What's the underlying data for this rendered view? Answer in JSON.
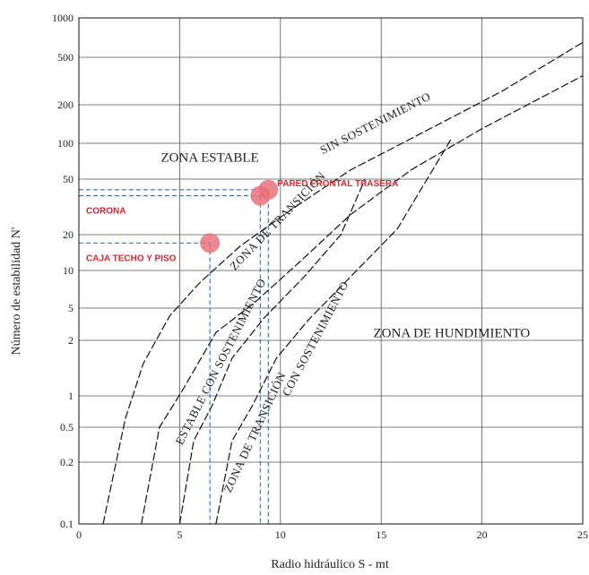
{
  "chart_data": {
    "type": "line",
    "xlabel": "Radio hidráulico S - mt",
    "ylabel": "Número de estabilidad N'",
    "xlim": [
      0,
      25
    ],
    "ylim": [
      0.1,
      1000
    ],
    "y_scale": "custom-log",
    "x_ticks": [
      "0",
      "5",
      "10",
      "15",
      "20",
      "25"
    ],
    "y_ticks": [
      "0.1",
      "0.2",
      "0.5",
      "1",
      "2",
      "5",
      "10",
      "20",
      "50",
      "100",
      "200",
      "500",
      "1000"
    ],
    "grid": true,
    "zones": [
      {
        "key": "estable",
        "label": "ZONA ESTABLE",
        "x": 6.5,
        "y": 70
      },
      {
        "key": "hundimiento",
        "label": "ZONA DE HUNDIMIENTO",
        "x": 18.5,
        "y": 2.2
      }
    ],
    "series": [
      {
        "key": "c1",
        "points": [
          [
            1.2,
            0.1
          ],
          [
            2.3,
            0.6
          ],
          [
            3.2,
            1.5
          ],
          [
            4.5,
            4
          ],
          [
            6.0,
            8
          ],
          [
            8.0,
            16
          ],
          [
            10.5,
            30
          ],
          [
            13.5,
            60
          ],
          [
            17.0,
            120
          ],
          [
            21.0,
            260
          ],
          [
            25.0,
            650
          ]
        ]
      },
      {
        "key": "c2",
        "points": [
          [
            3.1,
            0.1
          ],
          [
            4.0,
            0.5
          ],
          [
            5.2,
            1.1
          ],
          [
            6.8,
            2.5
          ],
          [
            8.7,
            5.5
          ],
          [
            11.0,
            12
          ],
          [
            13.5,
            28
          ],
          [
            16.5,
            60
          ],
          [
            20.0,
            130
          ],
          [
            25.0,
            350
          ]
        ]
      },
      {
        "key": "c3",
        "points": [
          [
            5.0,
            0.1
          ],
          [
            5.7,
            0.35
          ],
          [
            6.6,
            0.8
          ],
          [
            7.6,
            1.6
          ],
          [
            9.2,
            3.8
          ],
          [
            11.2,
            9
          ],
          [
            13.0,
            20
          ],
          [
            14.2,
            50
          ]
        ]
      },
      {
        "key": "c4",
        "points": [
          [
            6.8,
            0.1
          ],
          [
            7.6,
            0.35
          ],
          [
            8.6,
            0.8
          ],
          [
            9.8,
            1.6
          ],
          [
            11.4,
            3.6
          ],
          [
            13.2,
            8
          ],
          [
            15.8,
            22
          ],
          [
            18.5,
            110
          ]
        ]
      }
    ],
    "curve_labels": [
      {
        "label": "SIN SOSTENIMIENTO",
        "x": 14.8,
        "y": 135,
        "angle": -27
      },
      {
        "label": "ZONA DE TRANSICIÓN",
        "x": 10.0,
        "y": 24,
        "angle": -46
      },
      {
        "label": "ESTABLE CON SOSTENIMIENTO",
        "x": 7.2,
        "y": 1.5,
        "angle": -63
      },
      {
        "label": "ZONA DE TRANSICIÓN",
        "x": 8.9,
        "y": 0.42,
        "angle": -65
      },
      {
        "label": "CON SOSTENIMIENTO",
        "x": 11.9,
        "y": 2.0,
        "angle": -62
      }
    ],
    "points": [
      {
        "key": "corona",
        "label": "CORONA",
        "x": 9.0,
        "y": 38
      },
      {
        "key": "pared",
        "label": "PARED FRONTAL TRASERA",
        "x": 9.4,
        "y": 42
      },
      {
        "key": "caja",
        "label": "CAJA TECHO Y PISO",
        "x": 6.5,
        "y": 17
      }
    ],
    "colors": {
      "point": "#e8727a",
      "label": "#d9262f",
      "guide": "#2a6fb5",
      "grid": "#555555",
      "curve": "#111111"
    }
  }
}
